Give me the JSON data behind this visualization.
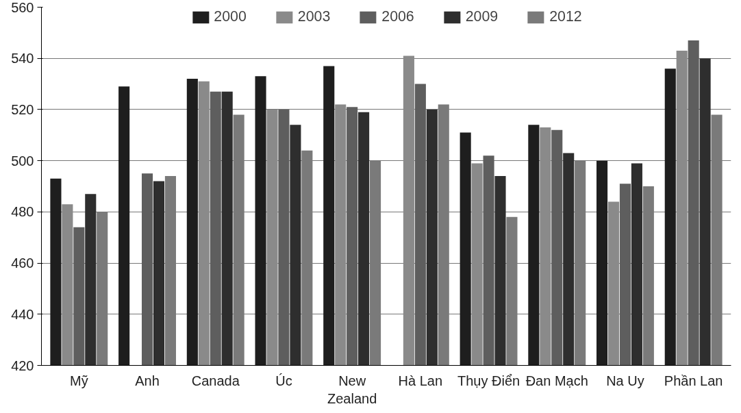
{
  "chart_data": {
    "type": "bar",
    "categories": [
      "Mỹ",
      "Anh",
      "Canada",
      "Úc",
      "New\nZealand",
      "Hà Lan",
      "Thụy Điển",
      "Đan Mạch",
      "Na Uy",
      "Phần Lan"
    ],
    "series": [
      {
        "name": "2000",
        "color": "#1e1e1e",
        "values": [
          493,
          529,
          532,
          533,
          537,
          null,
          511,
          514,
          500,
          536
        ]
      },
      {
        "name": "2003",
        "color": "#8a8a8a",
        "values": [
          483,
          null,
          531,
          520,
          522,
          541,
          499,
          513,
          484,
          543
        ]
      },
      {
        "name": "2006",
        "color": "#5e5e5e",
        "values": [
          474,
          495,
          527,
          520,
          521,
          530,
          502,
          512,
          491,
          547
        ]
      },
      {
        "name": "2009",
        "color": "#2e2e2e",
        "values": [
          487,
          492,
          527,
          514,
          519,
          520,
          494,
          503,
          499,
          540
        ]
      },
      {
        "name": "2012",
        "color": "#7a7a7a",
        "values": [
          480,
          494,
          518,
          504,
          500,
          522,
          478,
          500,
          490,
          518
        ]
      }
    ],
    "ylim": [
      420,
      560
    ],
    "yticks": [
      420,
      440,
      460,
      480,
      500,
      520,
      540,
      560
    ],
    "grid": "y",
    "legend": "top"
  }
}
